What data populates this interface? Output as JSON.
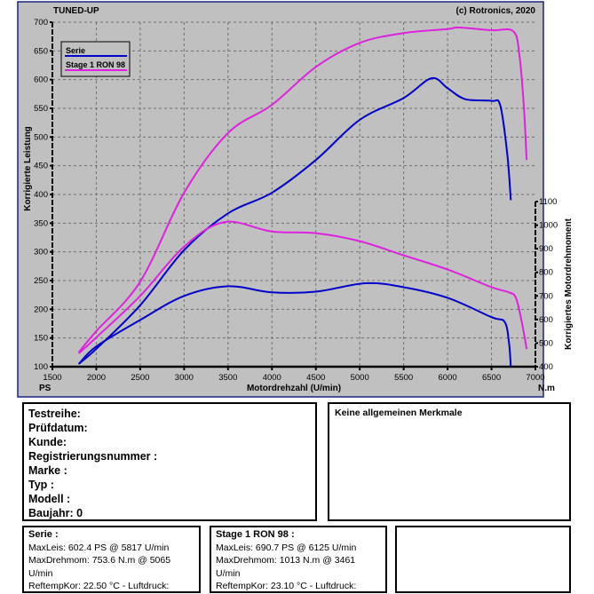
{
  "chart_data": {
    "type": "line",
    "title": "TUNED-UP",
    "copyright": "(c) Rotronics, 2020",
    "xlabel": "Motordrehzahl (U/min)",
    "ylabel_left": "Korrigierte Leistung",
    "ylabel_right": "Korrigiertes Motordrehmoment",
    "unit_left": "PS",
    "unit_right": "N.m",
    "xlim": [
      1500,
      7000
    ],
    "ylim_left": [
      100,
      700
    ],
    "ylim_right": [
      400,
      1100
    ],
    "xticks": [
      1500,
      2000,
      2500,
      3000,
      3500,
      4000,
      4500,
      5000,
      5500,
      6000,
      6500,
      7000
    ],
    "yticks_left": [
      100,
      150,
      200,
      250,
      300,
      350,
      400,
      450,
      500,
      550,
      600,
      650,
      700
    ],
    "yticks_right": [
      400,
      500,
      600,
      700,
      800,
      900,
      1000,
      1100
    ],
    "grid": true,
    "legend_position": "top-left",
    "series": [
      {
        "name": "Serie",
        "color": "#0000cc",
        "quantity": "power",
        "axis": "left",
        "x": [
          1800,
          2000,
          2500,
          3000,
          3500,
          4000,
          4500,
          5000,
          5500,
          5817,
          6000,
          6200,
          6500,
          6600,
          6680,
          6720
        ],
        "y": [
          105,
          131,
          207,
          303,
          367,
          403,
          460,
          530,
          568,
          602.4,
          585,
          566,
          563,
          555,
          470,
          390
        ]
      },
      {
        "name": "Stage 1 RON 98",
        "color": "#e020e0",
        "quantity": "power",
        "axis": "left",
        "x": [
          1800,
          2000,
          2500,
          3000,
          3500,
          4000,
          4500,
          5000,
          5500,
          6000,
          6125,
          6500,
          6750,
          6820,
          6870,
          6900
        ],
        "y": [
          125,
          162,
          248,
          403,
          507,
          556,
          622,
          664,
          681,
          688,
          690.7,
          686,
          684,
          640,
          550,
          460
        ]
      },
      {
        "name": "Serie",
        "color": "#0000cc",
        "quantity": "torque",
        "axis": "right",
        "x": [
          1800,
          2000,
          2500,
          3000,
          3500,
          4000,
          4500,
          5065,
          5500,
          6000,
          6500,
          6650,
          6700,
          6720
        ],
        "y": [
          411,
          486,
          598,
          700,
          741,
          715,
          718,
          753.6,
          737,
          692,
          610,
          590,
          500,
          400
        ]
      },
      {
        "name": "Stage 1 RON 98",
        "color": "#e020e0",
        "quantity": "torque",
        "axis": "right",
        "x": [
          1800,
          2000,
          2500,
          3000,
          3461,
          4000,
          4500,
          5000,
          5500,
          6000,
          6500,
          6700,
          6780,
          6850,
          6900
        ],
        "y": [
          456,
          524,
          700,
          909,
          1013,
          973,
          966,
          932,
          872,
          812,
          737,
          715,
          690,
          580,
          475
        ]
      }
    ]
  },
  "info": {
    "lines": [
      "Testreihe:",
      "Prüfdatum:",
      "Kunde:",
      "Registrierungsnummer  :",
      "Marke  :",
      "Typ  :",
      "Modell  :",
      "Baujahr: 0"
    ],
    "remarks": "Keine allgemeinen Merkmale"
  },
  "stats": [
    {
      "title": "Serie :",
      "lines": [
        "MaxLeis: 602.4 PS @ 5817 U/min",
        "MaxDrehmom: 753.6 N.m @ 5065",
        "U/min",
        "ReftempKor: 22.50 °C - Luftdruck:"
      ]
    },
    {
      "title": "Stage 1 RON 98 :",
      "lines": [
        "MaxLeis: 690.7 PS @ 6125 U/min",
        "MaxDrehmom: 1013 N.m @ 3461",
        "U/min",
        "ReftempKor: 23.10 °C - Luftdruck:"
      ]
    }
  ]
}
